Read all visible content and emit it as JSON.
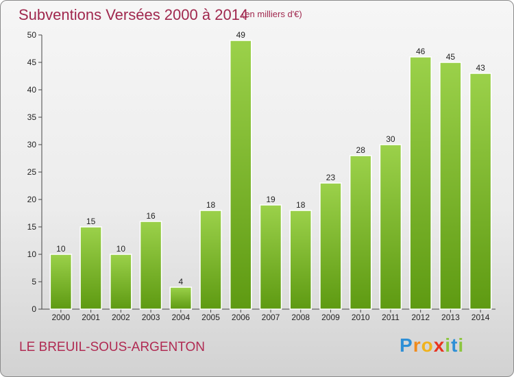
{
  "header": {
    "title": "Subventions Versées 2000 à 2014",
    "subtitle": "(en milliers d'€)"
  },
  "footer": {
    "commune": "LE BREUIL-SOUS-ARGENTON",
    "logo_letters": [
      "P",
      "r",
      "o",
      "x",
      "i",
      "t",
      "i"
    ]
  },
  "colors": {
    "title": "#a0284e",
    "bar_top": "#9bd14a",
    "bar_bottom": "#5e9a12",
    "logo": [
      "#2e8fd6",
      "#f08a1c",
      "#f0b21c",
      "#e8331f",
      "#8cc63f",
      "#2e8fd6",
      "#8cc63f"
    ]
  },
  "chart_data": {
    "type": "bar",
    "title": "Subventions Versées 2000 à 2014",
    "subtitle": "(en milliers d'€)",
    "categories": [
      "2000",
      "2001",
      "2002",
      "2003",
      "2004",
      "2005",
      "2006",
      "2007",
      "2008",
      "2009",
      "2010",
      "2011",
      "2012",
      "2013",
      "2014"
    ],
    "values": [
      10,
      15,
      10,
      16,
      4,
      18,
      49,
      19,
      18,
      23,
      28,
      30,
      46,
      45,
      43
    ],
    "ylim": [
      0,
      50
    ],
    "yticks": [
      0,
      5,
      10,
      15,
      20,
      25,
      30,
      35,
      40,
      45,
      50
    ],
    "grid": false,
    "legend": "none"
  }
}
